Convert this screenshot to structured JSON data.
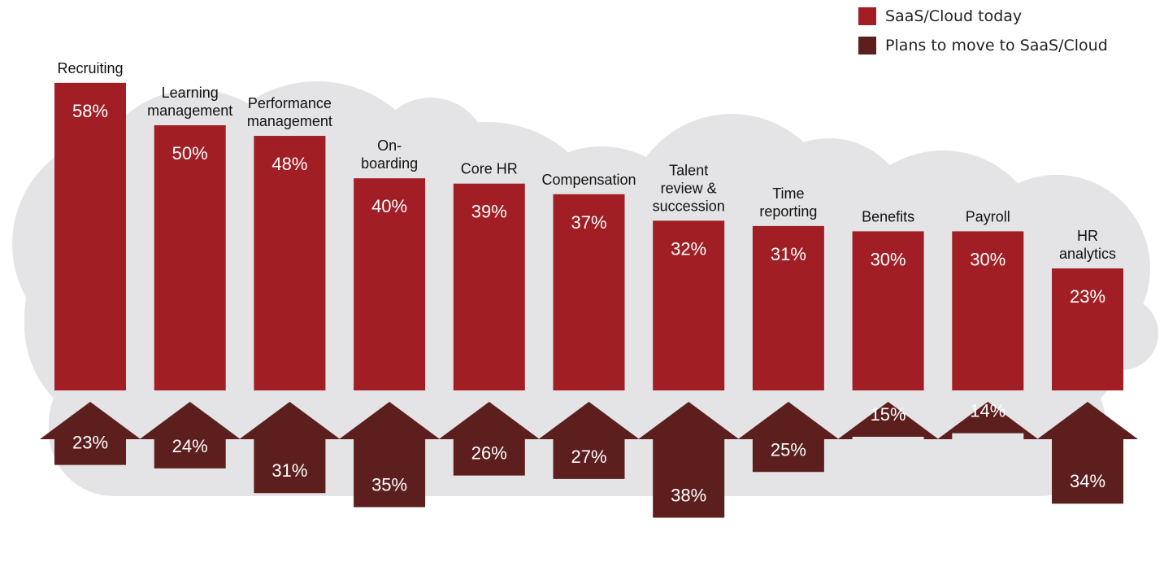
{
  "colors": {
    "today": "#a01e24",
    "plans": "#5c1f1e",
    "cloud": "#e4e4e6",
    "category_text": "#111111",
    "value_text": "#ffffff"
  },
  "legend": {
    "today_label": "SaaS/Cloud today",
    "plans_label": "Plans to move to SaaS/Cloud"
  },
  "chart_data": {
    "type": "bar",
    "title": "",
    "legend_position": "top-right",
    "categories": [
      "Recruiting",
      "Learning management",
      "Performance management",
      "On-boarding",
      "Core HR",
      "Compensation",
      "Talent review & succession",
      "Time reporting",
      "Benefits",
      "Payroll",
      "HR analytics"
    ],
    "category_label_lines": [
      [
        "Recruiting"
      ],
      [
        "Learning",
        "management"
      ],
      [
        "Performance",
        "management"
      ],
      [
        "On-",
        "boarding"
      ],
      [
        "Core HR"
      ],
      [
        "Compensation"
      ],
      [
        "Talent",
        "review &",
        "succession"
      ],
      [
        "Time",
        "reporting"
      ],
      [
        "Benefits"
      ],
      [
        "Payroll"
      ],
      [
        "HR",
        "analytics"
      ]
    ],
    "series": [
      {
        "name": "SaaS/Cloud today",
        "values": [
          58,
          50,
          48,
          40,
          39,
          37,
          32,
          31,
          30,
          30,
          23
        ],
        "labels": [
          "58%",
          "50%",
          "48%",
          "40%",
          "39%",
          "37%",
          "32%",
          "31%",
          "30%",
          "30%",
          "23%"
        ]
      },
      {
        "name": "Plans to move to SaaS/Cloud",
        "values": [
          23,
          24,
          31,
          35,
          26,
          27,
          38,
          25,
          15,
          14,
          34
        ],
        "labels": [
          "23%",
          "24%",
          "31%",
          "35%",
          "26%",
          "27%",
          "38%",
          "25%",
          "15%",
          "14%",
          "34%"
        ]
      }
    ]
  }
}
